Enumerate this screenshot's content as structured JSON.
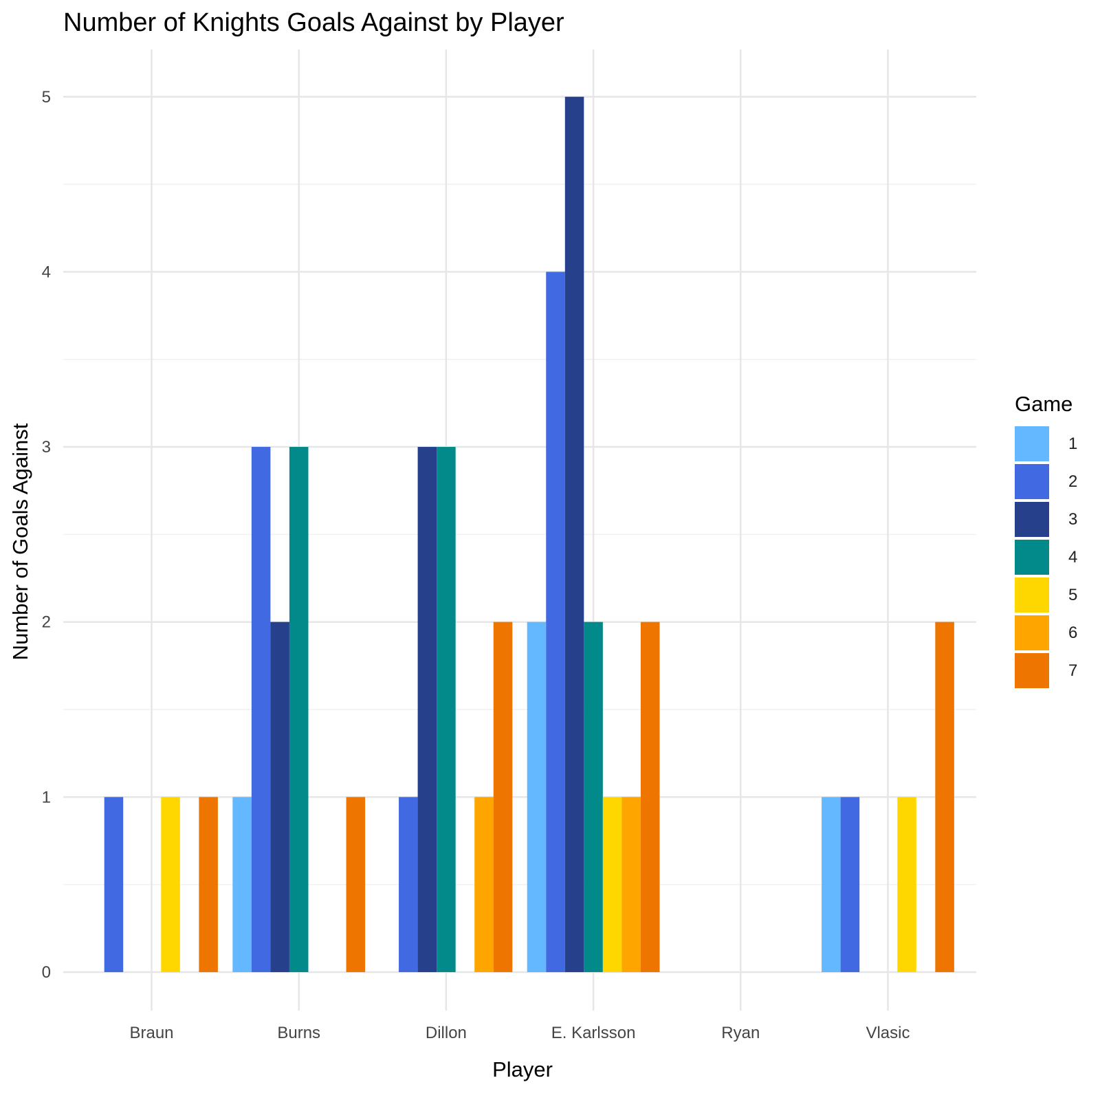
{
  "chart_data": {
    "type": "bar",
    "title": "Number of Knights Goals Against by Player",
    "xlabel": "Player",
    "ylabel": "Number of Goals Against",
    "categories": [
      "Braun",
      "Burns",
      "Dillon",
      "E. Karlsson",
      "Ryan",
      "Vlasic"
    ],
    "ylim": [
      -0.22,
      5.27
    ],
    "yticks": [
      0,
      1,
      2,
      3,
      4,
      5
    ],
    "grid": true,
    "legend_title": "Game",
    "legend_position": "right",
    "series": [
      {
        "name": "1",
        "color": "#63B8FF",
        "values": [
          0,
          1,
          0,
          2,
          0,
          1
        ]
      },
      {
        "name": "2",
        "color": "#4169E1",
        "values": [
          1,
          3,
          1,
          4,
          0,
          1
        ]
      },
      {
        "name": "3",
        "color": "#27408B",
        "values": [
          0,
          2,
          3,
          5,
          0,
          0
        ]
      },
      {
        "name": "4",
        "color": "#028A8A",
        "values": [
          0,
          3,
          3,
          2,
          0,
          0
        ]
      },
      {
        "name": "5",
        "color": "#FFD700",
        "values": [
          1,
          0,
          0,
          1,
          0,
          1
        ]
      },
      {
        "name": "6",
        "color": "#FFA500",
        "values": [
          0,
          0,
          1,
          1,
          0,
          0
        ]
      },
      {
        "name": "7",
        "color": "#EE7600",
        "values": [
          1,
          1,
          2,
          2,
          0,
          2
        ]
      }
    ]
  }
}
